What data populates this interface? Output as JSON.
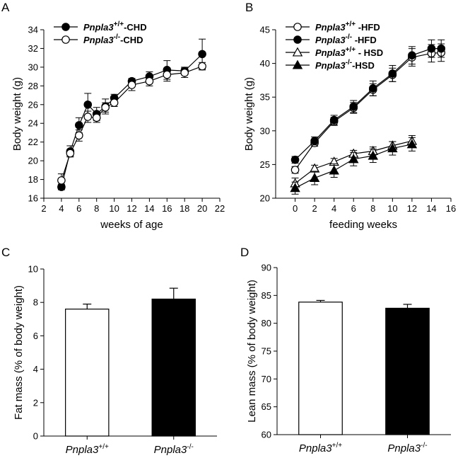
{
  "chart_data": [
    {
      "panel": "A",
      "type": "line",
      "xlabel": "weeks of age",
      "ylabel": "Body weight (g)",
      "xlim": [
        2,
        22
      ],
      "ylim": [
        16,
        34
      ],
      "xticks": [
        2,
        4,
        6,
        8,
        10,
        12,
        14,
        16,
        18,
        20,
        22
      ],
      "yticks": [
        16,
        18,
        20,
        22,
        24,
        26,
        28,
        30,
        32,
        34
      ],
      "legend_position": "top-left",
      "series": [
        {
          "name": "Pnpla3+/+-CHD",
          "legend": {
            "gene": "Pnpla3",
            "sup": "+/+",
            "suffix": "-CHD"
          },
          "marker": "filled-circle",
          "x": [
            4,
            5,
            6,
            7,
            8,
            9,
            10,
            12,
            14,
            16,
            18,
            20
          ],
          "y": [
            17.2,
            21.0,
            23.8,
            26.0,
            25.0,
            25.8,
            26.7,
            28.5,
            29.0,
            29.7,
            29.6,
            31.4
          ],
          "err": [
            0.3,
            0.6,
            0.8,
            1.2,
            0.7,
            0.8,
            0.4,
            0.3,
            0.5,
            1.0,
            0.4,
            1.6
          ]
        },
        {
          "name": "Pnpla3-/--CHD",
          "legend": {
            "gene": "Pnpla3",
            "sup": "-/-",
            "suffix": "-CHD"
          },
          "marker": "open-circle",
          "x": [
            4,
            5,
            6,
            7,
            8,
            9,
            10,
            12,
            14,
            16,
            18,
            20
          ],
          "y": [
            17.9,
            20.8,
            22.7,
            24.7,
            24.6,
            25.7,
            26.2,
            28.1,
            28.5,
            29.2,
            29.4,
            30.1
          ],
          "err": [
            0.7,
            0.3,
            0.6,
            0.6,
            0.5,
            0.5,
            0.4,
            0.6,
            0.5,
            0.7,
            0.5,
            0.4
          ]
        }
      ]
    },
    {
      "panel": "B",
      "type": "line",
      "xlabel": "feeding weeks",
      "ylabel": "Body weight (g)",
      "xlim": [
        -2,
        16
      ],
      "ylim": [
        20,
        45
      ],
      "xticks": [
        0,
        2,
        4,
        6,
        8,
        10,
        12,
        14,
        16
      ],
      "yticks": [
        20,
        25,
        30,
        35,
        40,
        45
      ],
      "legend_position": "top-left",
      "series": [
        {
          "name": "Pnpla3+/+ -HFD",
          "legend": {
            "gene": "Pnpla3",
            "sup": "+/+",
            "suffix": " -HFD"
          },
          "marker": "open-circle",
          "x": [
            0,
            2,
            4,
            6,
            8,
            10,
            12,
            14,
            15
          ],
          "y": [
            24.2,
            28.2,
            31.4,
            33.4,
            36.1,
            38.3,
            40.9,
            41.5,
            41.6
          ],
          "err": [
            0.5,
            0.5,
            0.6,
            0.8,
            0.9,
            1.0,
            1.3,
            1.3,
            1.3
          ]
        },
        {
          "name": "Pnpla3-/- -HFD",
          "legend": {
            "gene": "Pnpla3",
            "sup": "-/-",
            "suffix": " -HFD"
          },
          "marker": "filled-circle",
          "x": [
            0,
            2,
            4,
            6,
            8,
            10,
            12,
            14,
            15
          ],
          "y": [
            25.7,
            28.5,
            31.6,
            33.6,
            36.3,
            38.5,
            41.2,
            42.2,
            42.2
          ],
          "err": [
            0.5,
            0.6,
            0.7,
            0.9,
            1.1,
            1.2,
            1.3,
            1.3,
            1.3
          ]
        },
        {
          "name": "Pnpla3+/+ - HSD",
          "legend": {
            "gene": "Pnpla3",
            "sup": "+/+",
            "suffix": " - HSD"
          },
          "marker": "open-triangle",
          "x": [
            0,
            2,
            4,
            6,
            8,
            10,
            12
          ],
          "y": [
            22.2,
            24.4,
            25.4,
            26.6,
            27.0,
            27.8,
            28.5
          ],
          "err": [
            0.8,
            0.5,
            0.5,
            0.5,
            0.6,
            0.6,
            0.8
          ]
        },
        {
          "name": "Pnpla3-/--HSD",
          "legend": {
            "gene": "Pnpla3",
            "sup": "-/-",
            "suffix": "-HSD"
          },
          "marker": "filled-triangle",
          "x": [
            0,
            2,
            4,
            6,
            8,
            10,
            12
          ],
          "y": [
            21.5,
            23.0,
            24.1,
            25.8,
            26.3,
            27.4,
            28.0
          ],
          "err": [
            0.9,
            1.0,
            1.0,
            1.0,
            1.0,
            1.0,
            1.0
          ]
        }
      ]
    },
    {
      "panel": "C",
      "type": "bar",
      "ylabel": "Fat mass (% of body weight)",
      "ylim": [
        0,
        10
      ],
      "yticks": [
        0,
        2,
        4,
        6,
        8,
        10
      ],
      "categories": [
        {
          "gene": "Pnpla3",
          "sup": "+/+",
          "fill": "#ffffff"
        },
        {
          "gene": "Pnpla3",
          "sup": "-/-",
          "fill": "#000000"
        }
      ],
      "values": [
        7.6,
        8.2
      ],
      "err": [
        0.3,
        0.65
      ]
    },
    {
      "panel": "D",
      "type": "bar",
      "ylabel": "Lean mass (% of body weight)",
      "ylim": [
        60,
        90
      ],
      "yticks": [
        60,
        65,
        70,
        75,
        80,
        85,
        90
      ],
      "categories": [
        {
          "gene": "Pnpla3",
          "sup": "+/+",
          "fill": "#ffffff"
        },
        {
          "gene": "Pnpla3",
          "sup": "-/-",
          "fill": "#000000"
        }
      ],
      "values": [
        83.8,
        82.7
      ],
      "err": [
        0.3,
        0.7
      ]
    }
  ]
}
